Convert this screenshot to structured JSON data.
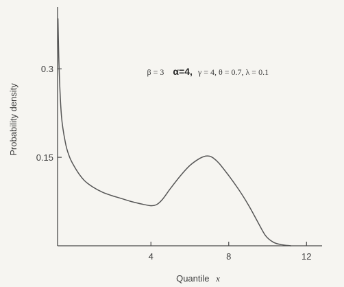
{
  "chart_data": {
    "type": "line",
    "title": "",
    "xlabel": "Quantile",
    "xlabel_symbol": "x",
    "ylabel": "Probability density",
    "xlim": [
      -0.8,
      12.8
    ],
    "ylim": [
      0,
      0.405
    ],
    "x_ticks": [
      {
        "value": 4,
        "label": "4"
      },
      {
        "value": 8,
        "label": "8"
      },
      {
        "value": 12,
        "label": "12"
      }
    ],
    "y_ticks": [
      {
        "value": 0.15,
        "label": "0.15"
      },
      {
        "value": 0.3,
        "label": "0.3"
      }
    ],
    "grid": false,
    "legend": "none",
    "annotation": {
      "beta": "β = 3",
      "alpha": "α=4,",
      "rest": "γ = 4,  θ = 0.7,  λ = 0.1",
      "x": 3.8,
      "y": 0.29
    },
    "series": [
      {
        "x": [
          -0.78,
          -0.72,
          -0.6,
          -0.4,
          -0.2,
          0.0,
          0.3,
          0.6,
          1.0,
          1.5,
          2.0,
          2.5,
          3.0,
          3.5,
          4.0,
          4.3,
          4.6,
          5.0,
          5.5,
          6.0,
          6.5,
          6.8,
          7.0,
          7.2,
          7.5,
          8.0,
          8.5,
          9.0,
          9.5,
          9.9,
          10.3,
          10.7,
          11.2
        ],
        "y": [
          0.385,
          0.3,
          0.22,
          0.175,
          0.152,
          0.138,
          0.122,
          0.11,
          0.1,
          0.091,
          0.085,
          0.08,
          0.075,
          0.071,
          0.068,
          0.07,
          0.079,
          0.097,
          0.118,
          0.136,
          0.148,
          0.152,
          0.152,
          0.149,
          0.14,
          0.119,
          0.096,
          0.07,
          0.04,
          0.017,
          0.006,
          0.002,
          0.0
        ]
      }
    ]
  }
}
